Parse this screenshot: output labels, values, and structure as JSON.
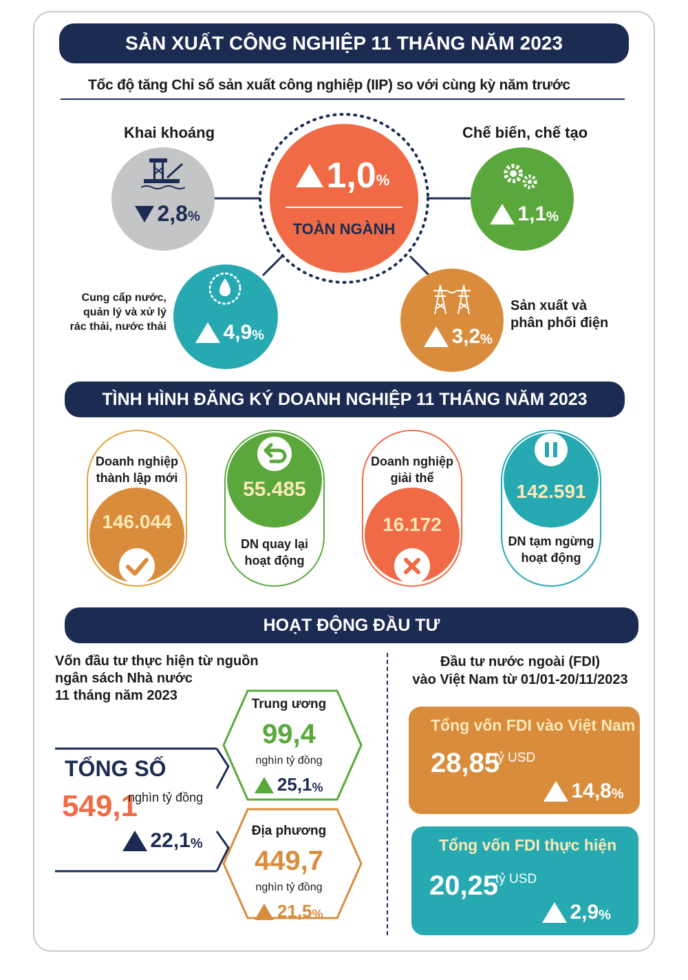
{
  "section1": {
    "title": "SẢN XUẤT CÔNG NGHIỆP 11 THÁNG NĂM 2023",
    "subtitle": "Tốc độ tăng Chỉ số sản xuất công nghiệp (IIP) so với cùng kỳ năm trước",
    "center": {
      "value": "1,0",
      "unit": "%",
      "label": "TOÀN NGÀNH",
      "direction": "up"
    },
    "mining": {
      "label": "Khai khoáng",
      "value": "2,8",
      "unit": "%",
      "direction": "down",
      "icon": "oil-rig-icon"
    },
    "processing": {
      "label": "Chế biến, chế tạo",
      "value": "1,1",
      "unit": "%",
      "direction": "up",
      "icon": "gears-icon"
    },
    "water": {
      "label_lines": [
        "Cung cấp nước,",
        "quản lý và xử lý",
        "rác thải, nước thải"
      ],
      "value": "4,9",
      "unit": "%",
      "direction": "up",
      "icon": "water-drop-icon"
    },
    "electricity": {
      "label_lines": [
        "Sản xuất và",
        "phân phối điện"
      ],
      "value": "3,2",
      "unit": "%",
      "direction": "up",
      "icon": "power-tower-icon"
    },
    "colors": {
      "orange": "#f06b45",
      "gray": "#c4c5c7",
      "green": "#5aa83c",
      "teal": "#26a9b0",
      "brown": "#d98c3c",
      "navy": "#1c2b52"
    }
  },
  "section2": {
    "title": "TÌNH HÌNH ĐĂNG KÝ DOANH NGHIỆP 11 THÁNG NĂM 2023",
    "cards": [
      {
        "label_lines": [
          "Doanh nghiệp",
          "thành lập mới"
        ],
        "value": "146.044",
        "icon": "checkmark-icon"
      },
      {
        "label_lines": [
          "DN quay lại",
          "hoạt động"
        ],
        "value": "55.485",
        "icon": "return-arrow-icon"
      },
      {
        "label_lines": [
          "Doanh nghiệp",
          "giải thể"
        ],
        "value": "16.172",
        "icon": "x-mark-icon"
      },
      {
        "label_lines": [
          "DN tạm ngừng",
          "hoạt động"
        ],
        "value": "142.591",
        "icon": "pause-icon"
      }
    ]
  },
  "section3": {
    "title": "HOẠT ĐỘNG ĐẦU TƯ",
    "budget": {
      "heading_lines": [
        "Vốn đầu tư thực hiện từ nguồn",
        "ngân sách Nhà nước",
        "11 tháng năm 2023"
      ],
      "total_label": "TỔNG SỐ",
      "total_value": "549,1",
      "total_unit": "nghìn tỷ đồng",
      "total_growth": "22,1",
      "central": {
        "label": "Trung ương",
        "value": "99,4",
        "unit": "nghìn tỷ đồng",
        "growth": "25,1"
      },
      "local": {
        "label": "Địa phương",
        "value": "449,7",
        "unit": "nghìn tỷ đồng",
        "growth": "21,5"
      }
    },
    "fdi": {
      "heading_lines": [
        "Đầu tư nước ngoài (FDI)",
        "vào Việt Nam từ 01/01-20/11/2023"
      ],
      "registered": {
        "label": "Tổng vốn FDI vào Việt Nam",
        "value": "28,85",
        "unit": "tỷ USD",
        "growth": "14,8"
      },
      "disbursed": {
        "label": "Tổng vốn FDI thực hiện",
        "value": "20,25",
        "unit": "tỷ USD",
        "growth": "2,9"
      }
    },
    "percent_sign": "%"
  }
}
